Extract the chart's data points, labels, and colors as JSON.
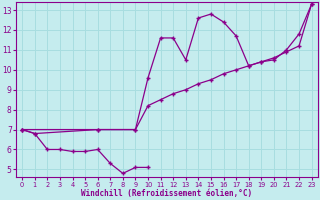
{
  "xlabel": "Windchill (Refroidissement éolien,°C)",
  "bg_color": "#c5ecee",
  "grid_color": "#a8dde0",
  "line_color": "#8b008b",
  "xlim": [
    -0.5,
    23.5
  ],
  "ylim": [
    4.6,
    13.4
  ],
  "xticks": [
    0,
    1,
    2,
    3,
    4,
    5,
    6,
    7,
    8,
    9,
    10,
    11,
    12,
    13,
    14,
    15,
    16,
    17,
    18,
    19,
    20,
    21,
    22,
    23
  ],
  "yticks": [
    5,
    6,
    7,
    8,
    9,
    10,
    11,
    12,
    13
  ],
  "line1_x": [
    0,
    1,
    2,
    3,
    4,
    5,
    6,
    7,
    8,
    9,
    10
  ],
  "line1_y": [
    7.0,
    6.8,
    6.0,
    6.0,
    5.9,
    5.9,
    6.0,
    5.3,
    4.8,
    5.1,
    5.1
  ],
  "line2_x": [
    0,
    1,
    6,
    9,
    10,
    11,
    12,
    13,
    14,
    15,
    16,
    17,
    18,
    19,
    20,
    21,
    22,
    23
  ],
  "line2_y": [
    7.0,
    6.8,
    7.0,
    7.0,
    9.6,
    11.6,
    11.6,
    10.5,
    12.6,
    12.8,
    12.4,
    11.7,
    10.2,
    10.4,
    10.5,
    11.0,
    11.8,
    13.3
  ],
  "line3_x": [
    0,
    6,
    9,
    10,
    11,
    12,
    13,
    14,
    15,
    16,
    17,
    18,
    19,
    20,
    21,
    22,
    23
  ],
  "line3_y": [
    7.0,
    7.0,
    7.0,
    8.2,
    8.5,
    8.8,
    9.0,
    9.3,
    9.5,
    9.8,
    10.0,
    10.2,
    10.4,
    10.6,
    10.9,
    11.2,
    13.3
  ]
}
